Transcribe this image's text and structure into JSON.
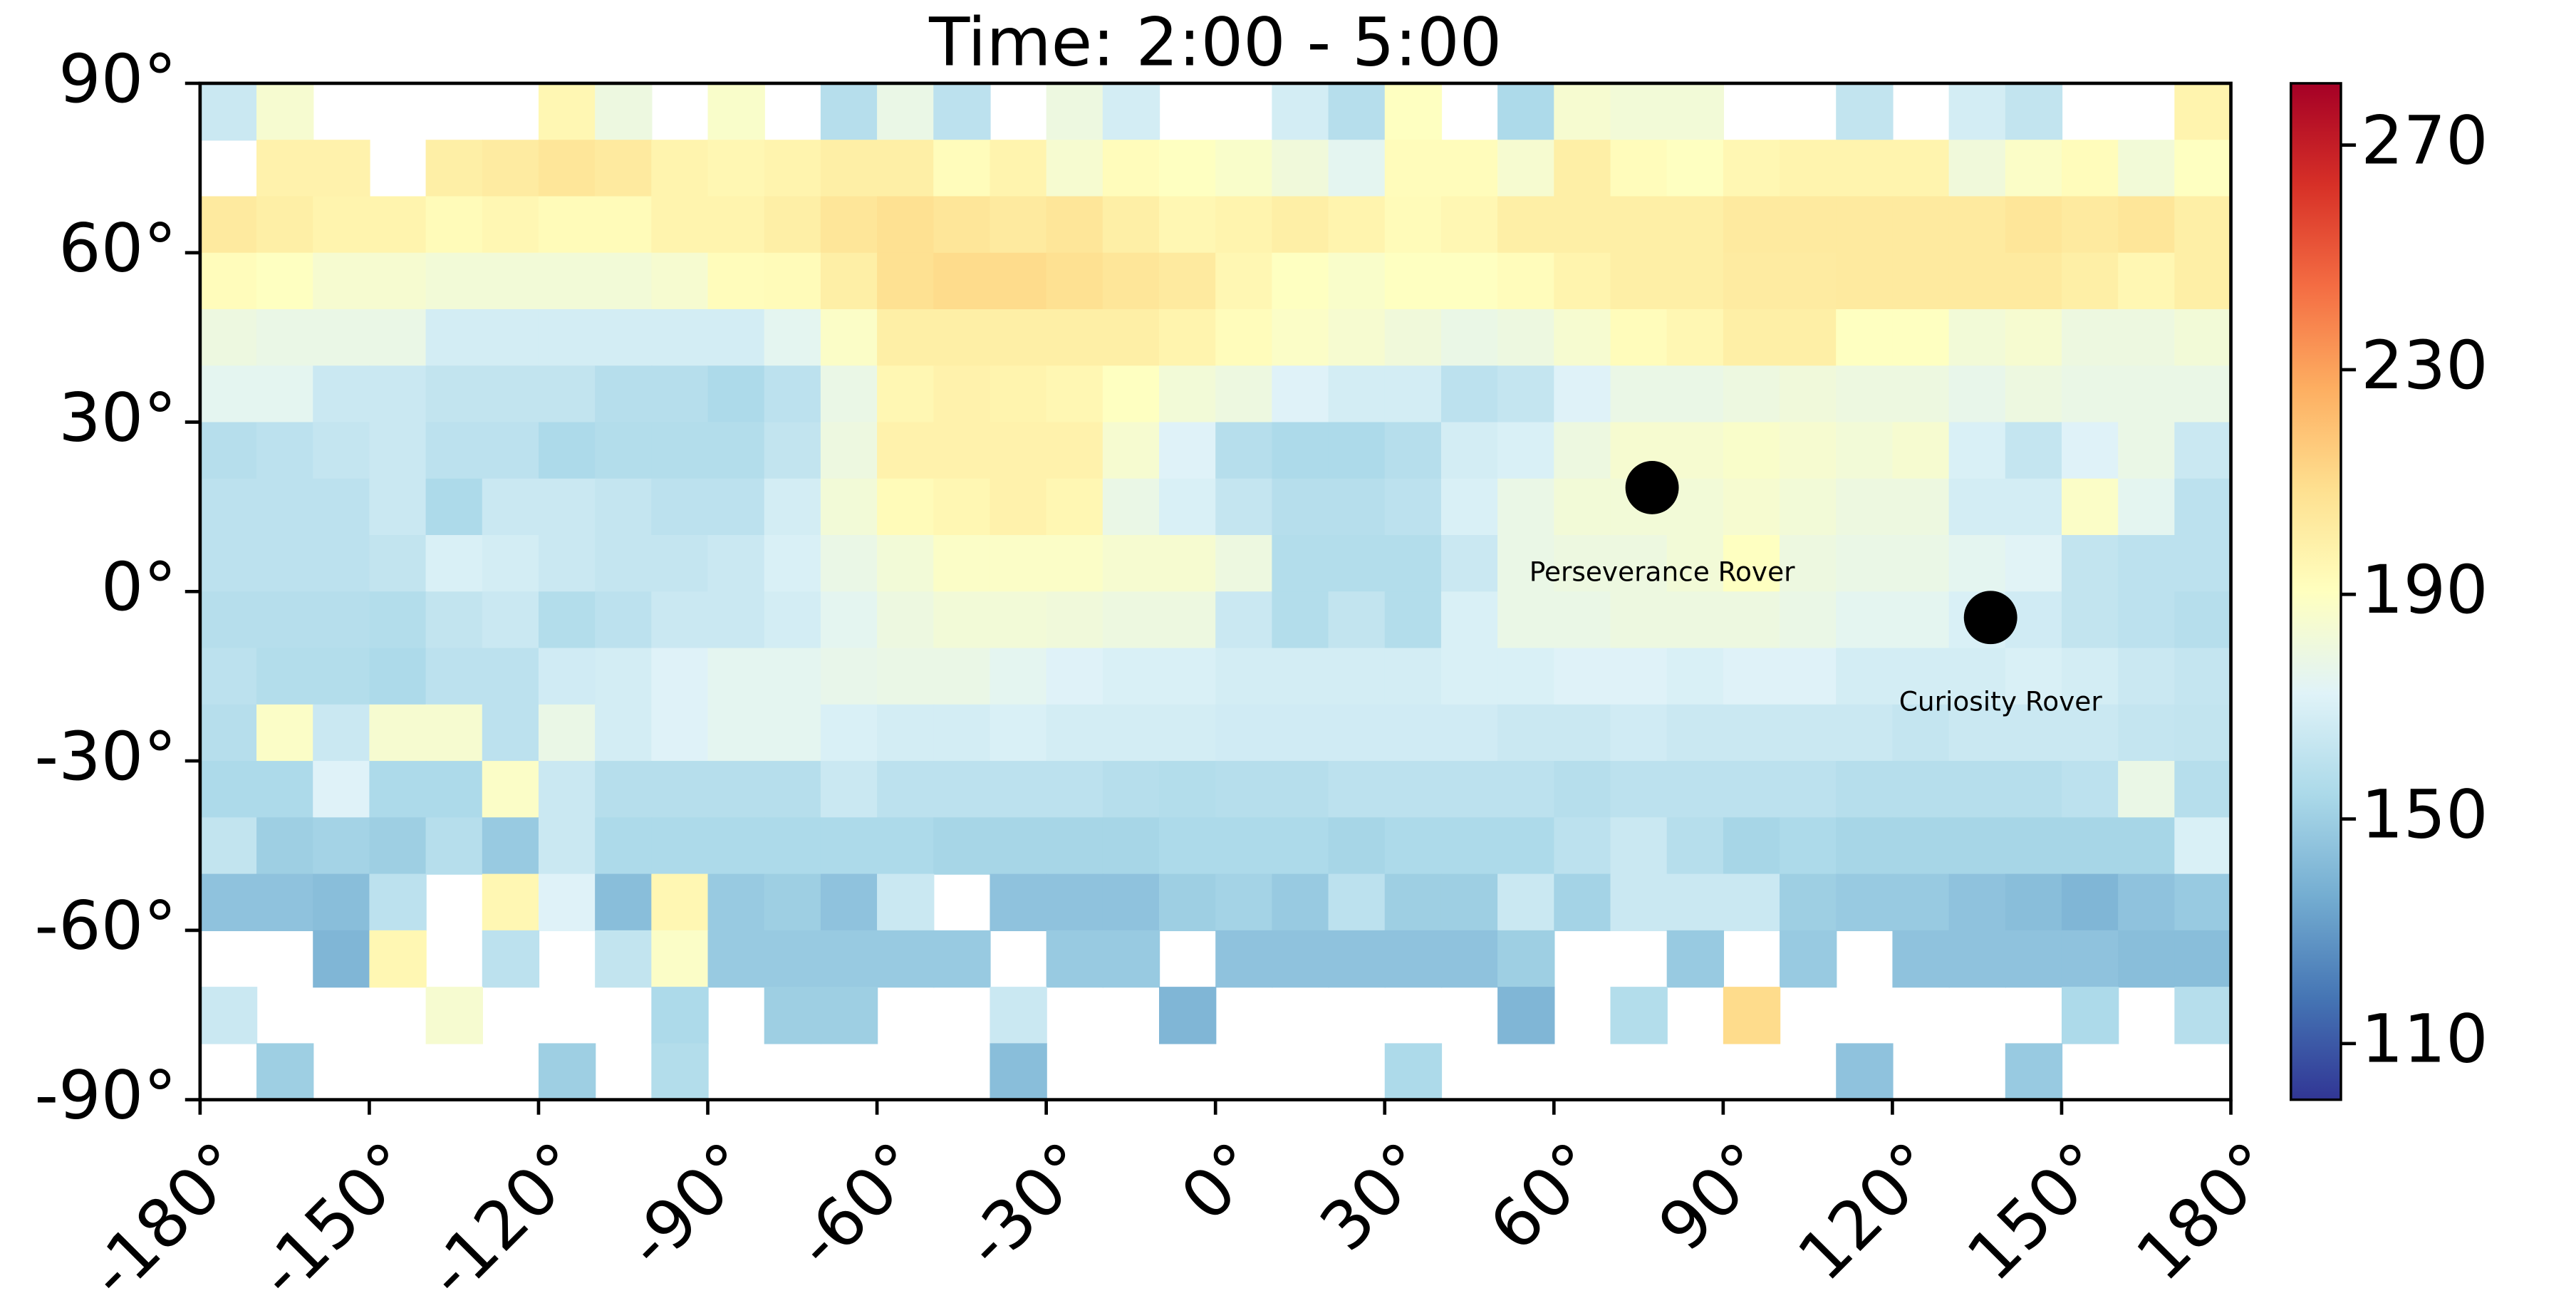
{
  "chart_data": {
    "type": "heatmap",
    "title": "Time: 2:00 - 5:00",
    "xlim": [
      -180,
      180
    ],
    "ylim": [
      -90,
      90
    ],
    "xticks": [
      {
        "value": -180,
        "label": "-180°"
      },
      {
        "value": -150,
        "label": "-150°"
      },
      {
        "value": -120,
        "label": "-120°"
      },
      {
        "value": -90,
        "label": "-90°"
      },
      {
        "value": -60,
        "label": "-60°"
      },
      {
        "value": -30,
        "label": "-30°"
      },
      {
        "value": 0,
        "label": "0°"
      },
      {
        "value": 30,
        "label": "30°"
      },
      {
        "value": 60,
        "label": "60°"
      },
      {
        "value": 90,
        "label": "90°"
      },
      {
        "value": 120,
        "label": "120°"
      },
      {
        "value": 150,
        "label": "150°"
      },
      {
        "value": 180,
        "label": "180°"
      }
    ],
    "yticks": [
      {
        "value": 90,
        "label": "90°"
      },
      {
        "value": 60,
        "label": "60°"
      },
      {
        "value": 30,
        "label": "30°"
      },
      {
        "value": 0,
        "label": "0°"
      },
      {
        "value": -30,
        "label": "-30°"
      },
      {
        "value": -60,
        "label": "-60°"
      },
      {
        "value": -90,
        "label": "-90°"
      }
    ],
    "colormap": "RdYlBu_r",
    "clim": [
      100,
      281
    ],
    "colorbar_ticks": [
      110,
      150,
      190,
      230,
      270
    ],
    "z": [
      [
        165,
        185,
        null,
        null,
        null,
        null,
        195,
        180,
        null,
        187,
        null,
        158,
        178,
        160,
        null,
        180,
        168,
        null,
        null,
        168,
        158,
        190,
        null,
        155,
        185,
        183,
        183,
        null,
        null,
        162,
        null,
        168,
        162,
        null,
        null,
        197
      ],
      [
        null,
        198,
        198,
        null,
        200,
        202,
        205,
        203,
        197,
        195,
        197,
        200,
        200,
        192,
        197,
        185,
        192,
        190,
        187,
        182,
        175,
        192,
        192,
        185,
        200,
        192,
        190,
        195,
        197,
        197,
        197,
        182,
        188,
        192,
        183,
        190
      ],
      [
        203,
        200,
        197,
        197,
        193,
        195,
        193,
        193,
        197,
        197,
        200,
        205,
        208,
        205,
        203,
        205,
        200,
        195,
        197,
        200,
        197,
        193,
        195,
        200,
        200,
        200,
        200,
        203,
        203,
        203,
        203,
        203,
        205,
        203,
        205,
        200
      ],
      [
        192,
        190,
        185,
        185,
        183,
        183,
        183,
        183,
        185,
        192,
        193,
        200,
        208,
        210,
        210,
        208,
        205,
        203,
        195,
        190,
        187,
        190,
        190,
        192,
        197,
        200,
        200,
        202,
        202,
        203,
        203,
        203,
        203,
        200,
        195,
        200
      ],
      [
        180,
        178,
        178,
        178,
        168,
        168,
        168,
        168,
        168,
        168,
        175,
        188,
        200,
        200,
        200,
        200,
        200,
        197,
        192,
        188,
        185,
        182,
        178,
        180,
        185,
        192,
        195,
        200,
        200,
        190,
        190,
        183,
        185,
        180,
        180,
        183
      ],
      [
        175,
        175,
        165,
        165,
        162,
        162,
        162,
        158,
        158,
        155,
        160,
        178,
        195,
        198,
        197,
        195,
        190,
        183,
        180,
        172,
        168,
        168,
        160,
        163,
        172,
        178,
        178,
        180,
        182,
        180,
        180,
        177,
        180,
        178,
        178,
        178
      ],
      [
        158,
        160,
        163,
        165,
        160,
        160,
        155,
        157,
        157,
        157,
        162,
        180,
        198,
        198,
        198,
        198,
        185,
        172,
        158,
        155,
        155,
        158,
        168,
        170,
        180,
        185,
        185,
        187,
        185,
        183,
        185,
        170,
        163,
        172,
        178,
        165
      ],
      [
        160,
        160,
        160,
        165,
        155,
        165,
        165,
        163,
        160,
        160,
        168,
        183,
        193,
        195,
        198,
        195,
        178,
        170,
        163,
        158,
        158,
        160,
        170,
        178,
        183,
        183,
        183,
        185,
        183,
        180,
        180,
        168,
        168,
        188,
        175,
        160
      ],
      [
        160,
        160,
        160,
        162,
        170,
        168,
        165,
        163,
        163,
        165,
        170,
        178,
        183,
        188,
        188,
        188,
        185,
        185,
        180,
        157,
        157,
        157,
        165,
        178,
        180,
        180,
        183,
        190,
        180,
        178,
        178,
        175,
        173,
        162,
        160,
        160
      ],
      [
        158,
        158,
        158,
        157,
        162,
        165,
        157,
        160,
        165,
        165,
        168,
        175,
        180,
        183,
        183,
        182,
        180,
        180,
        165,
        157,
        162,
        157,
        170,
        178,
        178,
        180,
        180,
        180,
        178,
        175,
        175,
        170,
        167,
        162,
        160,
        158
      ],
      [
        160,
        157,
        157,
        155,
        160,
        160,
        167,
        168,
        172,
        175,
        175,
        177,
        178,
        178,
        175,
        172,
        170,
        170,
        168,
        168,
        168,
        168,
        170,
        170,
        172,
        172,
        170,
        172,
        172,
        168,
        168,
        168,
        170,
        168,
        165,
        163
      ],
      [
        158,
        188,
        165,
        185,
        185,
        160,
        178,
        168,
        172,
        175,
        175,
        170,
        168,
        168,
        170,
        168,
        168,
        168,
        167,
        167,
        167,
        167,
        167,
        165,
        165,
        167,
        165,
        165,
        165,
        165,
        163,
        165,
        165,
        165,
        163,
        162
      ],
      [
        155,
        155,
        172,
        155,
        155,
        188,
        165,
        158,
        158,
        158,
        158,
        165,
        160,
        160,
        160,
        160,
        158,
        157,
        158,
        158,
        160,
        160,
        160,
        160,
        158,
        160,
        160,
        160,
        160,
        158,
        158,
        158,
        158,
        160,
        178,
        158
      ],
      [
        162,
        150,
        152,
        150,
        158,
        148,
        165,
        155,
        155,
        155,
        155,
        155,
        155,
        153,
        153,
        153,
        153,
        155,
        155,
        155,
        153,
        155,
        155,
        155,
        160,
        165,
        158,
        153,
        155,
        153,
        153,
        153,
        153,
        153,
        153,
        170
      ],
      [
        145,
        145,
        143,
        160,
        null,
        195,
        172,
        143,
        195,
        148,
        150,
        145,
        165,
        null,
        145,
        145,
        145,
        150,
        152,
        148,
        160,
        150,
        150,
        165,
        152,
        165,
        165,
        165,
        150,
        148,
        148,
        145,
        143,
        140,
        145,
        148
      ],
      [
        null,
        null,
        140,
        195,
        null,
        160,
        null,
        162,
        188,
        148,
        148,
        148,
        148,
        148,
        null,
        148,
        148,
        null,
        145,
        145,
        145,
        145,
        145,
        150,
        null,
        null,
        148,
        null,
        148,
        null,
        145,
        145,
        145,
        145,
        143,
        143
      ],
      [
        165,
        null,
        null,
        null,
        185,
        null,
        null,
        null,
        155,
        null,
        150,
        150,
        null,
        null,
        165,
        null,
        null,
        140,
        null,
        null,
        null,
        null,
        null,
        140,
        null,
        157,
        null,
        210,
        null,
        null,
        null,
        null,
        null,
        155,
        null,
        158
      ],
      [
        null,
        150,
        null,
        null,
        null,
        null,
        150,
        null,
        157,
        null,
        null,
        null,
        null,
        null,
        143,
        null,
        null,
        null,
        null,
        null,
        null,
        155,
        null,
        null,
        null,
        null,
        null,
        null,
        null,
        145,
        null,
        null,
        148,
        null,
        null,
        null
      ]
    ],
    "points": [
      {
        "name": "Perseverance Rover",
        "x": 77.4,
        "y": 18.4
      },
      {
        "name": "Curiosity Rover",
        "x": 137.4,
        "y": -4.6
      }
    ]
  }
}
